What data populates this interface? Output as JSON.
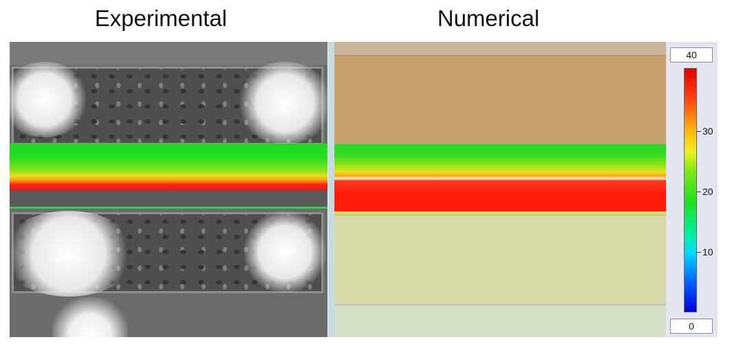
{
  "titles": {
    "experimental": "Experimental",
    "numerical": "Numerical"
  },
  "colorbar": {
    "max_label": "40",
    "min_label": "0",
    "ticks": [
      "30",
      "20",
      "10"
    ],
    "colors": [
      "#0000d8",
      "#00d8ff",
      "#1fe01f",
      "#f0f020",
      "#ff4010",
      "#e00000"
    ]
  }
}
